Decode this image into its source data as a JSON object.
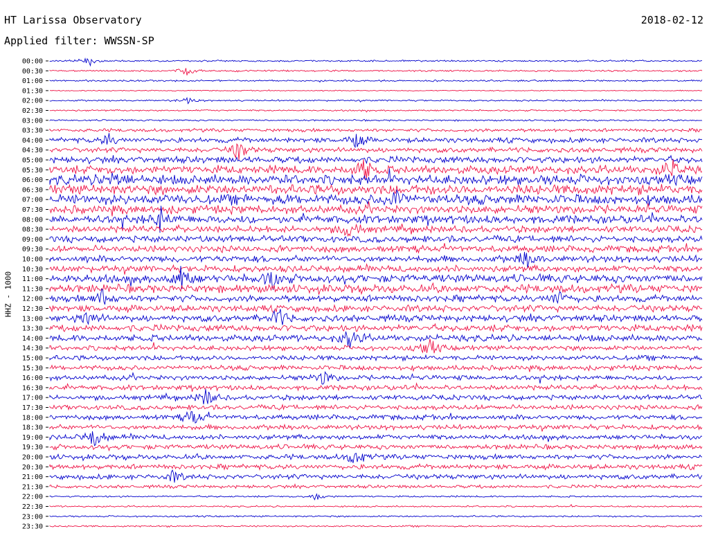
{
  "header": {
    "title": "HT Larissa Observatory",
    "date": "2018-02-12",
    "filter": "Applied filter: WWSSN-SP"
  },
  "axis": {
    "ylabel": "HHZ - 1000"
  },
  "chart_data": {
    "type": "line",
    "title": "HT Larissa Observatory",
    "subtitle": "Applied filter: WWSSN-SP",
    "ylabel": "HHZ - 1000",
    "categories": [
      "00:00",
      "00:30",
      "01:00",
      "01:30",
      "02:00",
      "02:30",
      "03:00",
      "03:30",
      "04:00",
      "04:30",
      "05:00",
      "05:30",
      "06:00",
      "06:30",
      "07:00",
      "07:30",
      "08:00",
      "08:30",
      "09:00",
      "09:30",
      "10:00",
      "10:30",
      "11:00",
      "11:30",
      "12:00",
      "12:30",
      "13:00",
      "13:30",
      "14:00",
      "14:30",
      "15:00",
      "15:30",
      "16:00",
      "16:30",
      "17:00",
      "17:30",
      "18:00",
      "18:30",
      "19:00",
      "19:30",
      "20:00",
      "20:30",
      "21:00",
      "21:30",
      "22:00",
      "22:30",
      "23:00",
      "23:30"
    ],
    "trace_colors": [
      "#0000cc",
      "#ee1144"
    ],
    "noise_level": [
      1,
      1,
      1,
      0.6,
      1,
      1,
      1,
      2,
      3,
      3,
      4,
      5,
      6,
      6,
      6,
      5,
      5,
      4,
      4,
      4,
      4,
      4,
      5,
      5,
      4,
      4,
      4,
      4,
      4,
      3,
      3,
      3,
      3,
      3,
      3,
      3,
      3,
      3,
      3,
      3,
      3,
      3,
      3,
      2,
      1,
      1,
      1,
      1
    ],
    "events": [
      {
        "row": 0,
        "x": 0.06,
        "amp": 7
      },
      {
        "row": 1,
        "x": 0.21,
        "amp": 6
      },
      {
        "row": 4,
        "x": 0.21,
        "amp": 5
      },
      {
        "row": 8,
        "x": 0.09,
        "amp": 9
      },
      {
        "row": 8,
        "x": 0.47,
        "amp": 10
      },
      {
        "row": 9,
        "x": 0.29,
        "amp": 14
      },
      {
        "row": 11,
        "x": 0.48,
        "amp": 16
      },
      {
        "row": 11,
        "x": 0.95,
        "amp": 16
      },
      {
        "row": 12,
        "x": 0.1,
        "amp": 12
      },
      {
        "row": 14,
        "x": 0.53,
        "amp": 14
      },
      {
        "row": 16,
        "x": 0.17,
        "amp": 16
      },
      {
        "row": 17,
        "x": 0.46,
        "amp": 13
      },
      {
        "row": 20,
        "x": 0.73,
        "amp": 11
      },
      {
        "row": 22,
        "x": 0.2,
        "amp": 18
      },
      {
        "row": 22,
        "x": 0.34,
        "amp": 14
      },
      {
        "row": 24,
        "x": 0.08,
        "amp": 12
      },
      {
        "row": 24,
        "x": 0.78,
        "amp": 10
      },
      {
        "row": 26,
        "x": 0.06,
        "amp": 12
      },
      {
        "row": 26,
        "x": 0.35,
        "amp": 14
      },
      {
        "row": 28,
        "x": 0.46,
        "amp": 16
      },
      {
        "row": 29,
        "x": 0.58,
        "amp": 14
      },
      {
        "row": 32,
        "x": 0.42,
        "amp": 10
      },
      {
        "row": 34,
        "x": 0.24,
        "amp": 12
      },
      {
        "row": 36,
        "x": 0.22,
        "amp": 12
      },
      {
        "row": 38,
        "x": 0.07,
        "amp": 16
      },
      {
        "row": 40,
        "x": 0.47,
        "amp": 14
      },
      {
        "row": 42,
        "x": 0.19,
        "amp": 8
      },
      {
        "row": 44,
        "x": 0.41,
        "amp": 6
      }
    ]
  }
}
